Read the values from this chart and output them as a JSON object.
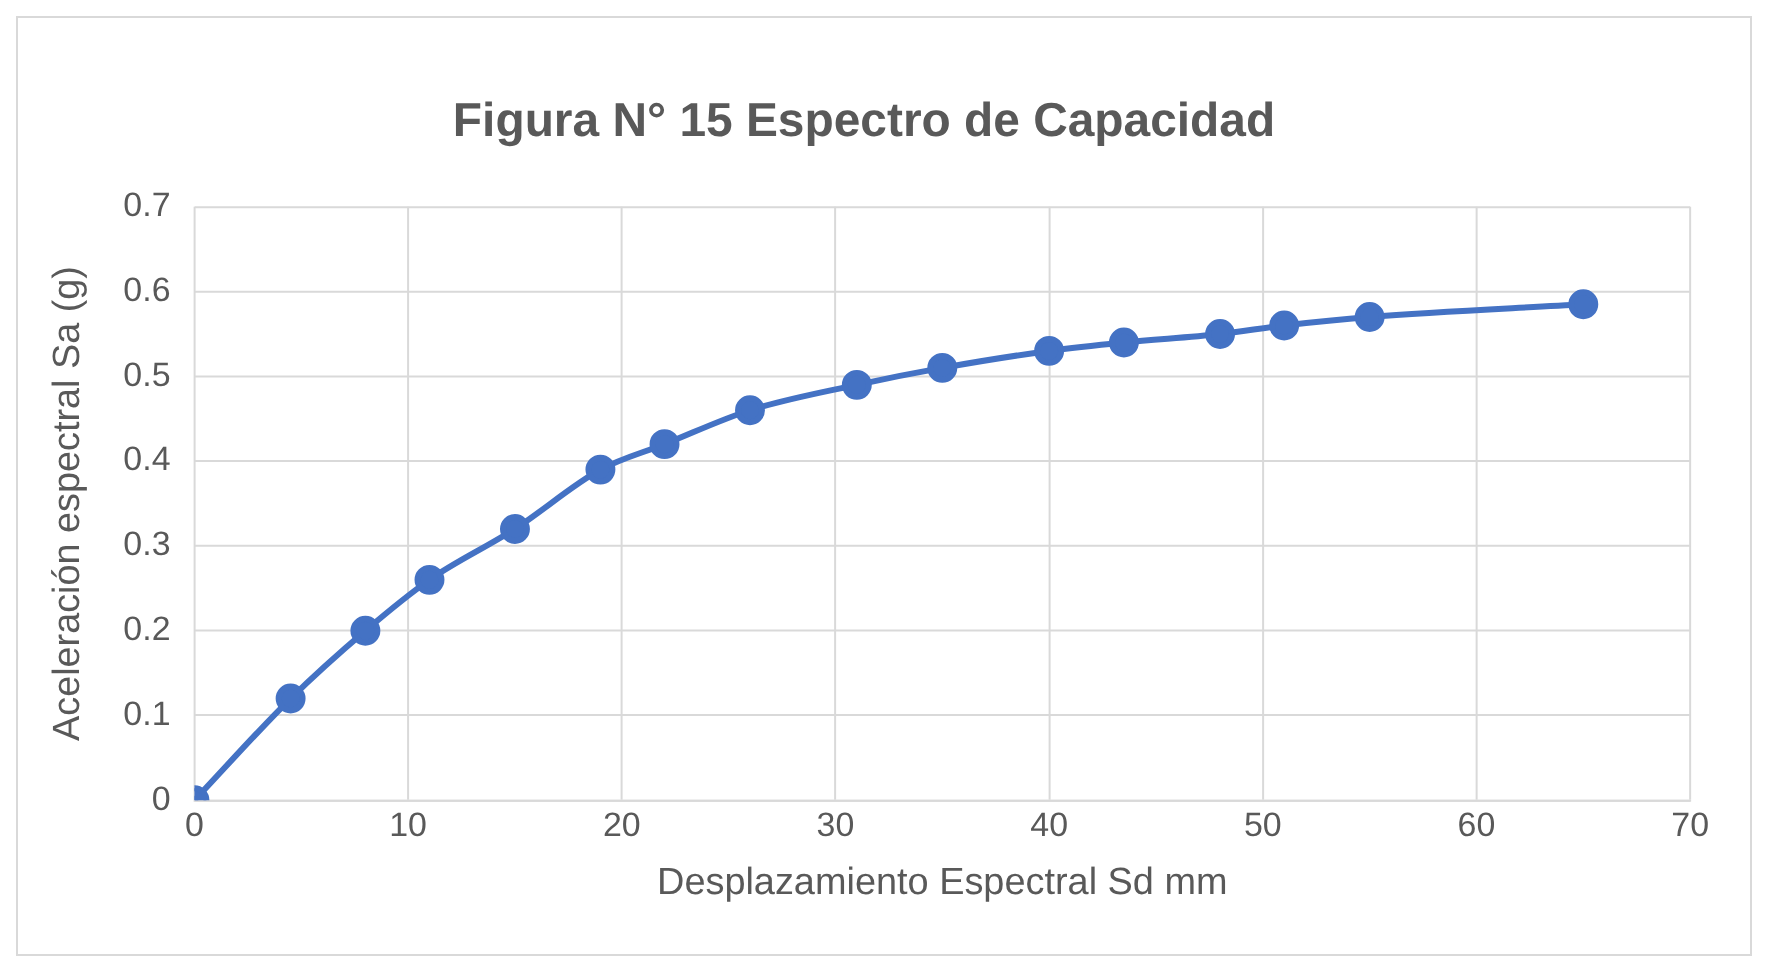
{
  "chart_data": {
    "type": "line",
    "title": "Figura N° 15 Espectro de Capacidad",
    "xlabel": "Desplazamiento Espectral Sd mm",
    "ylabel": "Aceleración espectral Sa (g)",
    "x": [
      0,
      4.5,
      8,
      11,
      15,
      19,
      22,
      26,
      31,
      35,
      40,
      43.5,
      48,
      51,
      55,
      65
    ],
    "series": [
      {
        "color": "#4472c4",
        "values": [
          0,
          0.12,
          0.2,
          0.26,
          0.32,
          0.39,
          0.42,
          0.46,
          0.49,
          0.51,
          0.53,
          0.54,
          0.55,
          0.56,
          0.57,
          0.585
        ]
      }
    ],
    "xlim": [
      0,
      70
    ],
    "xticks": [
      0,
      10,
      20,
      30,
      40,
      50,
      60,
      70
    ],
    "ylim": [
      0,
      0.7
    ],
    "yticks": [
      0,
      0.1,
      0.2,
      0.3,
      0.4,
      0.5,
      0.6,
      0.7
    ],
    "grid": true,
    "legend": false,
    "marker": "circle",
    "line_style": "solid"
  }
}
